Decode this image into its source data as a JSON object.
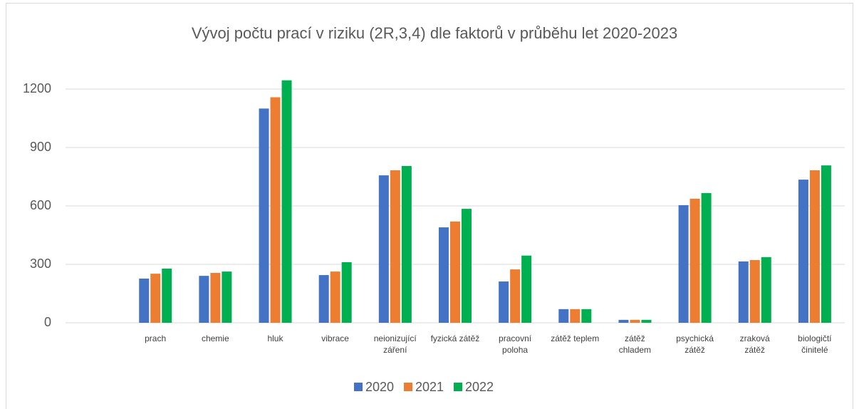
{
  "chart_data": {
    "type": "bar",
    "title": "Vývoj počtu prací v riziku (2R,3,4) dle faktorů v průběhu let 2020-2023",
    "categories": [
      null,
      "prach",
      "chemie",
      "hluk",
      "vibrace",
      "neionizující\nzáření",
      "fyzická zátěž",
      "pracovní\npoloha",
      "zátěž teplem",
      "zátěž\nchladem",
      "psychická\nzátěž",
      "zraková\nzátěž",
      "biologičtí\nčinitelé"
    ],
    "series": [
      {
        "name": "2020",
        "color": "#4472c4",
        "values": [
          null,
          227,
          241,
          1100,
          245,
          757,
          490,
          212,
          70,
          15,
          604,
          315,
          735
        ]
      },
      {
        "name": "2021",
        "color": "#ed7d31",
        "values": [
          null,
          252,
          256,
          1158,
          263,
          783,
          520,
          274,
          70,
          15,
          637,
          322,
          783
        ]
      },
      {
        "name": "2022",
        "color": "#00b050",
        "values": [
          null,
          278,
          263,
          1245,
          311,
          805,
          585,
          345,
          70,
          15,
          666,
          337,
          808
        ]
      }
    ],
    "ylim": [
      0,
      1200
    ],
    "yticks": [
      0,
      300,
      600,
      900,
      1200
    ],
    "grid": true,
    "legend": "bottom"
  }
}
